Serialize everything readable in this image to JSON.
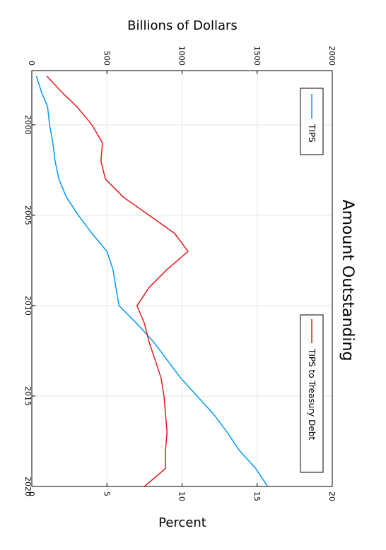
{
  "chart_data": {
    "type": "line",
    "title": "Amount Outstanding",
    "x": {
      "range": [
        1997,
        2020
      ],
      "ticks": [
        2000,
        2005,
        2010,
        2015,
        2020
      ],
      "tick_labels": [
        "2000",
        "2005",
        "2010",
        "2015",
        "2020"
      ]
    },
    "y_left": {
      "label": "Billions of Dollars",
      "range": [
        0,
        2000
      ],
      "ticks": [
        0,
        500,
        1000,
        1500,
        2000
      ],
      "tick_labels": [
        "0",
        "500",
        "1000",
        "1500",
        "2000"
      ]
    },
    "y_right": {
      "label": "Percent",
      "range": [
        0,
        20
      ],
      "ticks": [
        0,
        5,
        10,
        15,
        20
      ],
      "tick_labels": [
        "0",
        "5",
        "10",
        "15",
        "20"
      ]
    },
    "orientation": "rotated 90° clockwise (time runs top to bottom)",
    "grid": true,
    "series": [
      {
        "name": "TIPS",
        "color": "#009af9",
        "axis": "y_left",
        "x": [
          1997.3,
          1998.2,
          1999,
          2000,
          2001,
          2002,
          2003,
          2004,
          2005,
          2006,
          2007,
          2008,
          2009,
          2010,
          2011,
          2012,
          2013,
          2014,
          2015,
          2016,
          2017,
          2018,
          2019,
          2020
        ],
        "values": [
          30,
          65,
          105,
          118,
          140,
          155,
          180,
          230,
          310,
          400,
          500,
          540,
          560,
          580,
          700,
          810,
          900,
          990,
          1100,
          1210,
          1300,
          1380,
          1490,
          1570
        ]
      },
      {
        "name": "TIPS to Treasury Debt",
        "color": "#e41a1c",
        "axis": "y_right",
        "x": [
          1997.3,
          1998.2,
          1999,
          2000,
          2001,
          2002,
          2003,
          2004,
          2005,
          2006,
          2007,
          2008,
          2009,
          2010,
          2011,
          2012,
          2013,
          2014,
          2015,
          2016,
          2017,
          2018,
          2019,
          2020
        ],
        "values": [
          1.0,
          2.0,
          3.0,
          4.0,
          4.7,
          4.6,
          4.9,
          6.1,
          7.8,
          9.5,
          10.4,
          9.0,
          7.8,
          7.0,
          7.5,
          7.8,
          8.2,
          8.6,
          8.8,
          8.9,
          9.0,
          8.9,
          8.9,
          7.5
        ]
      }
    ],
    "legends": [
      {
        "label": "TIPS",
        "color": "#009af9",
        "placement": "top-right"
      },
      {
        "label": "TIPS to Treasury Debt",
        "color": "#e41a1c",
        "placement": "bottom-right"
      }
    ]
  }
}
